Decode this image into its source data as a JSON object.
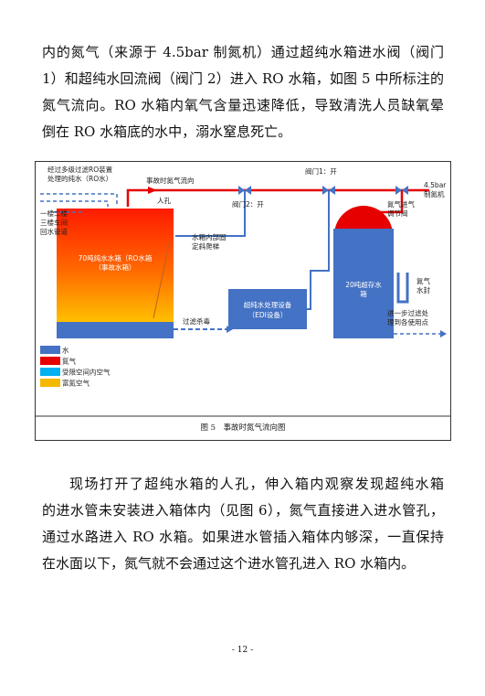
{
  "paragraphs": [
    {
      "lines": [
        "内的氮气（来源于 4.5bar 制氮机）通过超纯水箱进水阀（阀门",
        "1）和超纯水回流阀（阀门 2）进入 RO 水箱，如图 5 中所标注的",
        "氮气流向。RO 水箱内氧气含量迅速降低，导致清洗人员缺氧晕",
        "倒在 RO 水箱底的水中，溺水窒息死亡。"
      ]
    },
    {
      "lines": [
        "现场打开了超纯水箱的人孔，伸入箱内观察发现超纯水箱",
        "的进水管未安装进入箱体内（见图 6），氮气直接进入进水管孔，",
        "通过水路进入 RO 水箱。如果进水管插入箱体内够深，一直保持",
        "在水面以下，氮气就不会通过这个进水管孔进入 RO 水箱内。"
      ]
    }
  ],
  "figure": {
    "labels": [
      [
        "经过多级过滤RO装置",
        "处理的纯水（RO水）"
      ],
      [
        "事故时氮气流向"
      ],
      [
        "阀门1：开"
      ],
      [
        "4.5bar",
        "制氮机"
      ],
      [
        "人孔"
      ],
      [
        "阀门2：开"
      ],
      [
        "氮气进气",
        "调节阀"
      ],
      [
        "一楼二楼",
        "三楼车间",
        "回水管道"
      ],
      [
        "70吨纯水水箱（RO水箱",
        "（事故水箱）"
      ],
      [
        "水箱内部固",
        "定斜爬梯"
      ],
      [
        "20吨超存水",
        "箱"
      ],
      [
        "氮气",
        "水封"
      ],
      [
        "超纯水处理设备",
        "（EDI设备）"
      ],
      [
        "过滤杀毒"
      ],
      [
        "进一步过滤处",
        "理到各使用点"
      ]
    ],
    "legend": [
      {
        "name": "水",
        "color": "#4472c4"
      },
      {
        "name": "氮气",
        "color": "#e60000"
      },
      {
        "name": "受限空间内空气",
        "color": "#00b0f0"
      },
      {
        "name": "富氮空气",
        "color": "#f5b800"
      }
    ],
    "caption": "图 5　事故时氮气流向图"
  },
  "page_number": "- 12 -"
}
